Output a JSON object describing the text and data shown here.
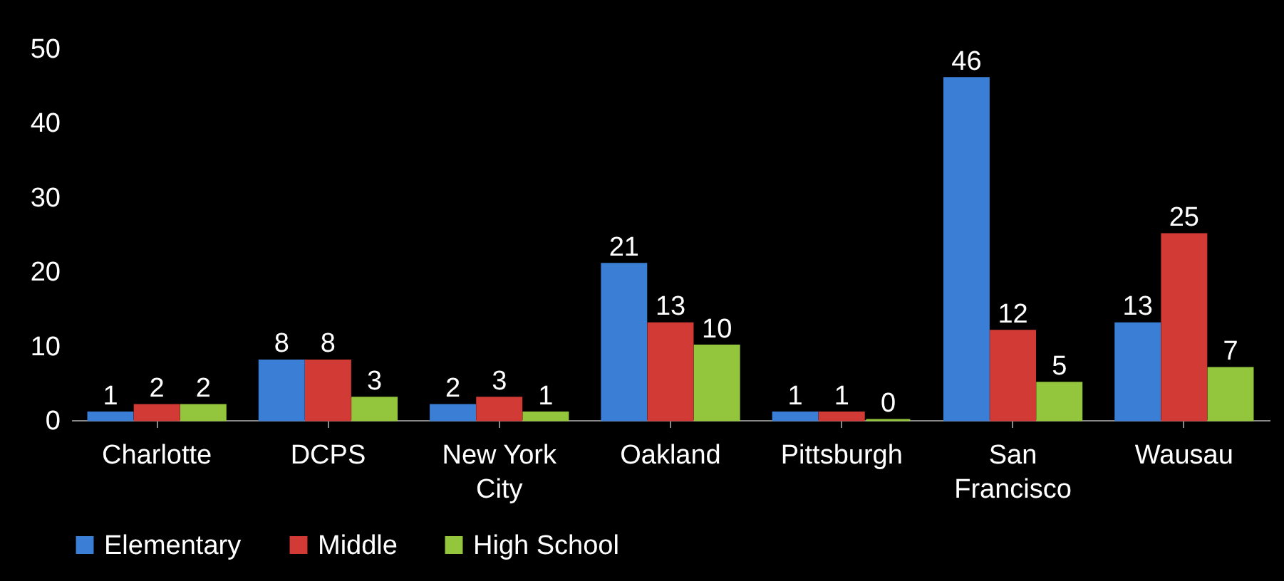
{
  "chart_data": {
    "type": "bar",
    "categories": [
      "Charlotte",
      "DCPS",
      "New York City",
      "Oakland",
      "Pittsburgh",
      "San Francisco",
      "Wausau"
    ],
    "series": [
      {
        "name": "Elementary",
        "color": "#3a7fd5",
        "values": [
          1,
          8,
          2,
          21,
          1,
          46,
          13
        ]
      },
      {
        "name": "Middle",
        "color": "#d13a35",
        "values": [
          2,
          8,
          3,
          13,
          1,
          12,
          25
        ]
      },
      {
        "name": "High School",
        "color": "#93c63c",
        "values": [
          2,
          3,
          1,
          10,
          0,
          5,
          7
        ]
      }
    ],
    "ylim": [
      0,
      50
    ],
    "yticks": [
      0,
      10,
      20,
      30,
      40,
      50
    ],
    "grid": false,
    "legend": "bottom",
    "data_labels": true
  }
}
